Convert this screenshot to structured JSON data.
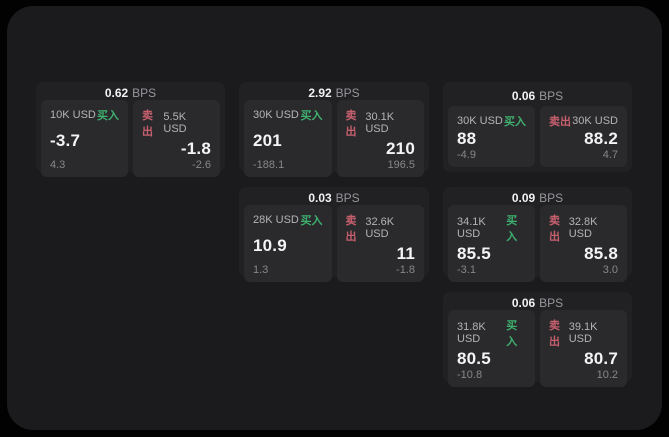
{
  "labels": {
    "bps": "BPS",
    "buy": "买入",
    "sell": "卖出"
  },
  "colors": {
    "page_bg": "#020202",
    "container_bg": "#1b1b1d",
    "card_bg": "#212124",
    "panel_bg": "#2a2a2d",
    "buy_green": "#3fb06f",
    "sell_red": "#c75f6d",
    "value_white": "#f4f4f5",
    "muted_gray": "#87878a"
  },
  "cards": [
    {
      "bps": "0.62",
      "row": 1,
      "col": 1,
      "buy": {
        "size": "10K USD",
        "price": "-3.7",
        "sub": "4.3"
      },
      "sell": {
        "size": "5.5K USD",
        "price": "-1.8",
        "sub": "-2.6"
      }
    },
    {
      "bps": "2.92",
      "row": 1,
      "col": 2,
      "buy": {
        "size": "30K USD",
        "price": "201",
        "sub": "-188.1"
      },
      "sell": {
        "size": "30.1K USD",
        "price": "210",
        "sub": "196.5"
      }
    },
    {
      "bps": "0.06",
      "row": 1,
      "col": 3,
      "buy": {
        "size": "30K USD",
        "price": "88",
        "sub": "-4.9"
      },
      "sell": {
        "size": "30K USD",
        "price": "88.2",
        "sub": "4.7"
      }
    },
    {
      "bps": "0.03",
      "row": 2,
      "col": 2,
      "buy": {
        "size": "28K USD",
        "price": "10.9",
        "sub": "1.3"
      },
      "sell": {
        "size": "32.6K USD",
        "price": "11",
        "sub": "-1.8"
      }
    },
    {
      "bps": "0.09",
      "row": 2,
      "col": 3,
      "buy": {
        "size": "34.1K USD",
        "price": "85.5",
        "sub": "-3.1"
      },
      "sell": {
        "size": "32.8K USD",
        "price": "85.8",
        "sub": "3.0"
      }
    },
    {
      "bps": "0.06",
      "row": 3,
      "col": 3,
      "buy": {
        "size": "31.8K USD",
        "price": "80.5",
        "sub": "-10.8"
      },
      "sell": {
        "size": "39.1K USD",
        "price": "80.7",
        "sub": "10.2"
      }
    }
  ]
}
